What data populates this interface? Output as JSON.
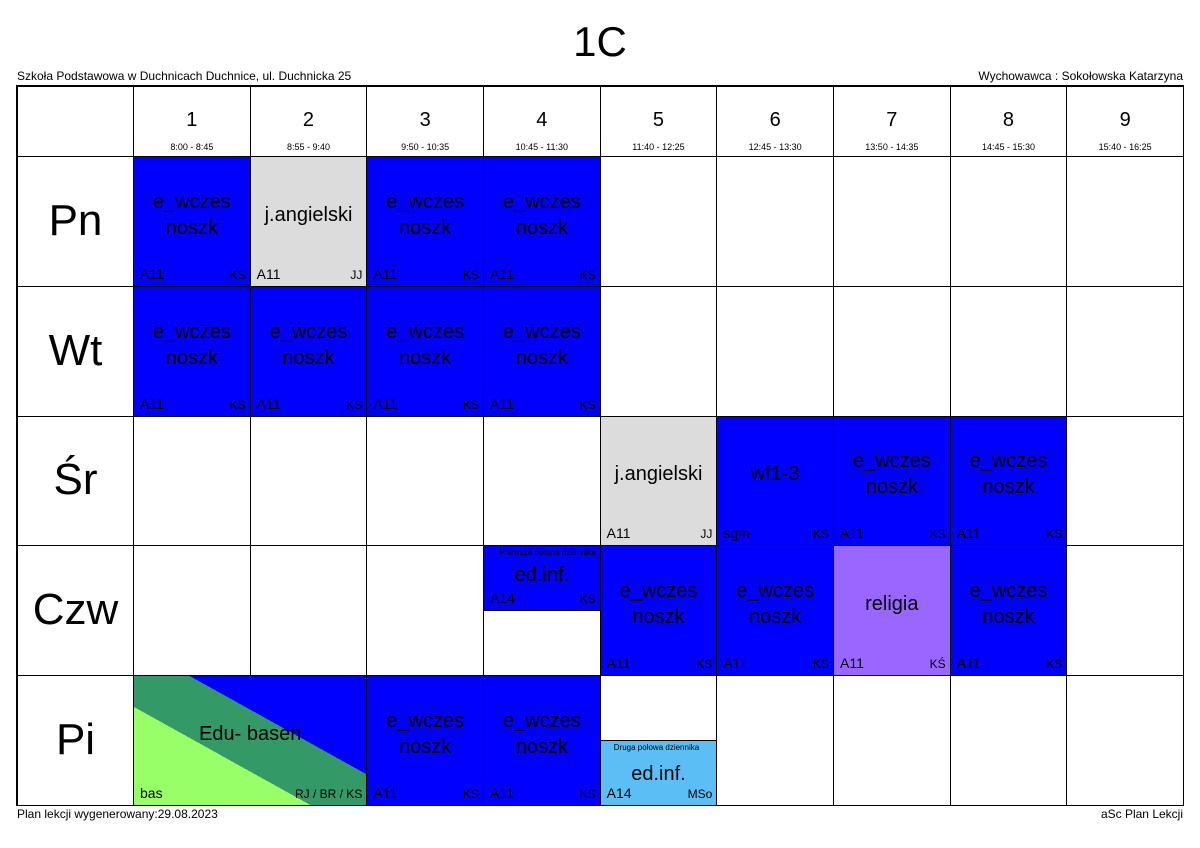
{
  "header": {
    "title": "1C",
    "school": "Szkoła Podstawowa w Duchnicach Duchnice, ul. Duchnicka 25",
    "teacher": "Wychowawca : Sokołowska Katarzyna"
  },
  "periods": [
    {
      "number": "1",
      "time": "8:00 - 8:45"
    },
    {
      "number": "2",
      "time": "8:55 - 9:40"
    },
    {
      "number": "3",
      "time": "9:50 - 10:35"
    },
    {
      "number": "4",
      "time": "10:45 - 11:30"
    },
    {
      "number": "5",
      "time": "11:40 - 12:25"
    },
    {
      "number": "6",
      "time": "12:45 - 13:30"
    },
    {
      "number": "7",
      "time": "13:50 - 14:35"
    },
    {
      "number": "8",
      "time": "14:45 - 15:30"
    },
    {
      "number": "9",
      "time": "15:40 - 16:25"
    }
  ],
  "days": [
    {
      "name": "Pn",
      "cells": [
        {
          "subject": "e_wczes noszk",
          "room": "A11",
          "teacher": "KS",
          "color": "#0000ff"
        },
        {
          "subject": "j.angielski",
          "room": "A11",
          "teacher": "JJ",
          "color": "#dcdcdc"
        },
        {
          "subject": "e_wczes noszk",
          "room": "A11",
          "teacher": "KS",
          "color": "#0000ff"
        },
        {
          "subject": "e_wczes noszk",
          "room": "A11",
          "teacher": "KS",
          "color": "#0000ff"
        },
        null,
        null,
        null,
        null,
        null
      ]
    },
    {
      "name": "Wt",
      "cells": [
        {
          "subject": "e_wczes noszk",
          "room": "A11",
          "teacher": "KS",
          "color": "#0000ff"
        },
        {
          "subject": "e_wczes noszk",
          "room": "A11",
          "teacher": "KS",
          "color": "#0000ff"
        },
        {
          "subject": "e_wczes noszk",
          "room": "A11",
          "teacher": "KS",
          "color": "#0000ff"
        },
        {
          "subject": "e_wczes noszk",
          "room": "A11",
          "teacher": "KS",
          "color": "#0000ff"
        },
        null,
        null,
        null,
        null,
        null
      ]
    },
    {
      "name": "Śr",
      "cells": [
        null,
        null,
        null,
        null,
        {
          "subject": "j.angielski",
          "room": "A11",
          "teacher": "JJ",
          "color": "#dcdcdc"
        },
        {
          "subject": "wf1-3",
          "room": "sgm",
          "teacher": "KS",
          "color": "#0000ff"
        },
        {
          "subject": "e_wczes noszk",
          "room": "A11",
          "teacher": "KS",
          "color": "#0000ff"
        },
        {
          "subject": "e_wczes noszk",
          "room": "A11",
          "teacher": "KS",
          "color": "#0000ff"
        },
        null
      ]
    },
    {
      "name": "Czw",
      "cells": [
        null,
        null,
        null,
        {
          "subject": "ed.inf.",
          "room": "A14",
          "teacher": "KS",
          "color": "#0000ff",
          "note": "Pierwsza połowa dziennika",
          "half": "top"
        },
        {
          "subject": "e_wczes noszk",
          "room": "A11",
          "teacher": "KS",
          "color": "#0000ff"
        },
        {
          "subject": "e_wczes noszk",
          "room": "A11",
          "teacher": "KS",
          "color": "#0000ff"
        },
        {
          "subject": "religia",
          "room": "A11",
          "teacher": "KŚ",
          "color": "#9966ff"
        },
        {
          "subject": "e_wczes noszk",
          "room": "A11",
          "teacher": "KS",
          "color": "#0000ff"
        },
        null
      ]
    },
    {
      "name": "Pi",
      "cells": [
        {
          "subject": "Edu- basen",
          "room": "bas",
          "teacher": "RJ / BR / KS",
          "colors": [
            "#99ff66",
            "#339966",
            "#0000ff"
          ],
          "span": 2
        },
        {
          "subject": "e_wczes noszk",
          "room": "A11",
          "teacher": "KS",
          "color": "#0000ff"
        },
        {
          "subject": "e_wczes noszk",
          "room": "A11",
          "teacher": "KS",
          "color": "#0000ff"
        },
        {
          "subject": "ed.inf.",
          "room": "A14",
          "teacher": "MSo",
          "color": "#5bbff5",
          "note": "Druga połowa dziennika",
          "half": "bottom"
        },
        null,
        null,
        null,
        null
      ]
    }
  ],
  "footer": {
    "generated": "Plan lekcji wygenerowany:29.08.2023",
    "app": "aSc Plan Lekcji"
  }
}
